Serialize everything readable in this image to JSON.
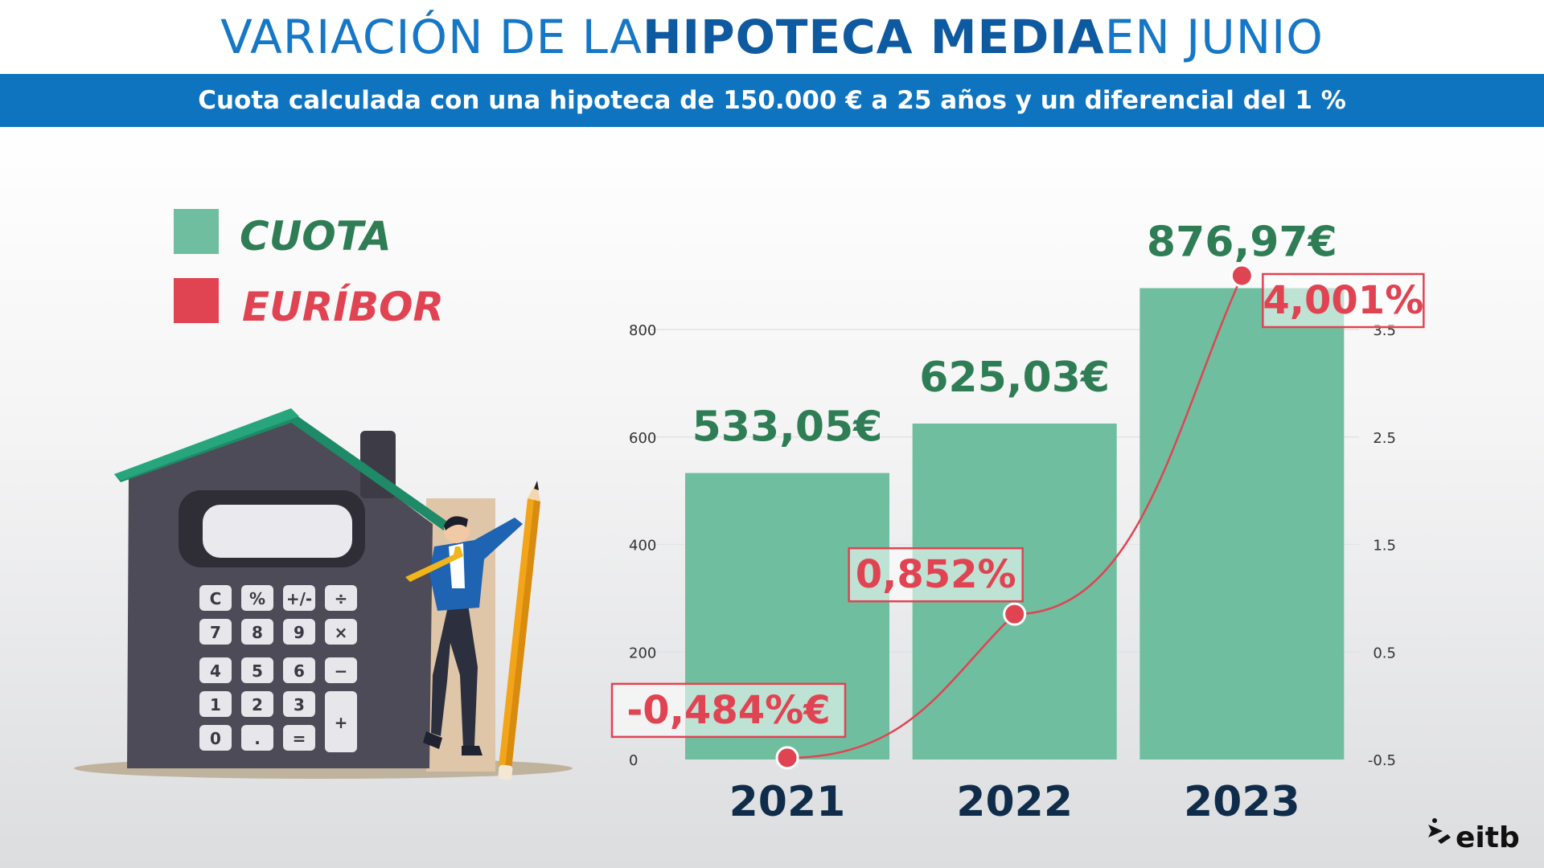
{
  "header": {
    "title_pre": "VARIACIÓN DE LA ",
    "title_strong": "HIPOTECA MEDIA",
    "title_post": " EN JUNIO",
    "subtitle": "Cuota calculada con una hipoteca de 150.000 € a 25 años y un diferencial del 1 %"
  },
  "legend": {
    "cuota_label": "CUOTA",
    "euribor_label": "EURÍBOR"
  },
  "colors": {
    "bar": "#6fbe9f",
    "bar_label": "#2e7d55",
    "line": "#e04452",
    "title": "#1677c7",
    "subtitle_bg": "#0f74c0",
    "year": "#0f2d4a"
  },
  "illustration": {
    "keys": [
      "C",
      "%",
      "+/-",
      "÷",
      "7",
      "8",
      "9",
      "×",
      "4",
      "5",
      "6",
      "−",
      "1",
      "2",
      "3",
      "+",
      "0",
      ".",
      "="
    ]
  },
  "chart_data": {
    "type": "bar",
    "categories": [
      "2021",
      "2022",
      "2023"
    ],
    "series": [
      {
        "name": "CUOTA",
        "kind": "bar",
        "axis": "left",
        "values": [
          533.05,
          625.03,
          876.97
        ],
        "labels": [
          "533,05€",
          "625,03€",
          "876,97€"
        ]
      },
      {
        "name": "EURÍBOR",
        "kind": "line",
        "axis": "right",
        "values": [
          -0.484,
          0.852,
          4.001
        ],
        "labels": [
          "-0,484%€",
          "0,852%",
          "4,001%"
        ]
      }
    ],
    "y_left": {
      "ylim": [
        0,
        800
      ],
      "ticks": [
        "0",
        "200",
        "400",
        "600",
        "800"
      ]
    },
    "y_right": {
      "ylim": [
        -0.5,
        3.5
      ],
      "ticks": [
        "-0.5",
        "0.5",
        "1.5",
        "2.5",
        "3.5"
      ]
    },
    "grid": true,
    "legend_position": "top-left"
  },
  "brand": {
    "logo_text": "eitb"
  }
}
